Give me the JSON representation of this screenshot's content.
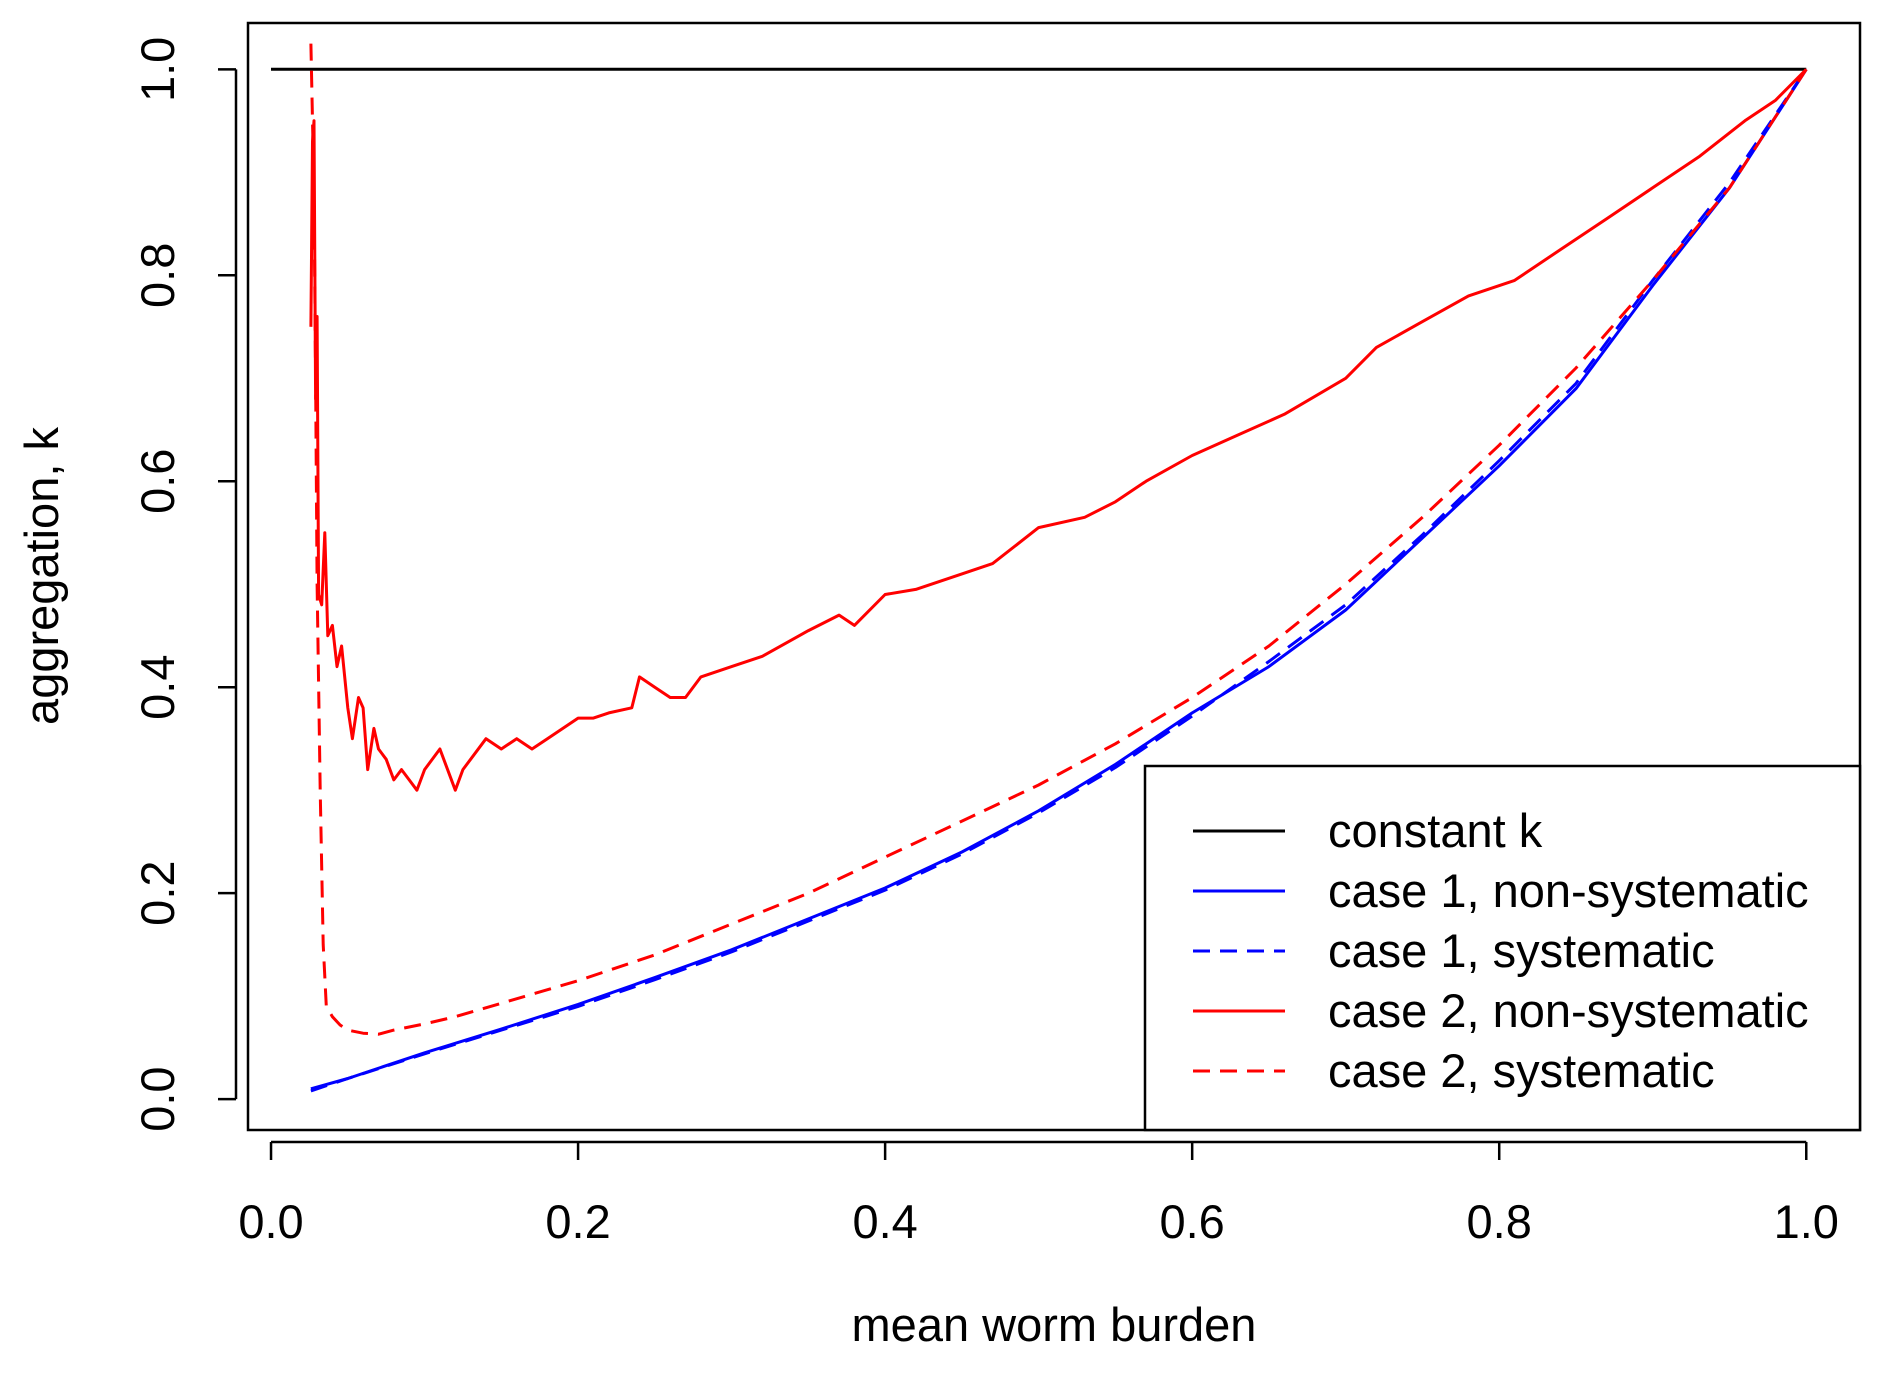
{
  "chart_data": {
    "type": "line",
    "xlabel": "mean worm burden",
    "ylabel": "aggregation, k",
    "xlim": [
      -0.015,
      1.035
    ],
    "ylim": [
      -0.03,
      1.045
    ],
    "xticks": [
      "0.0",
      "0.2",
      "0.4",
      "0.6",
      "0.8",
      "1.0"
    ],
    "yticks": [
      "0.0",
      "0.2",
      "0.4",
      "0.6",
      "0.8",
      "1.0"
    ],
    "grid": false,
    "legend_position": "bottom-right",
    "series": [
      {
        "name": "constant k",
        "color": "#000000",
        "dash": "solid",
        "x": [
          0.0,
          1.0
        ],
        "y": [
          1.0,
          1.0
        ]
      },
      {
        "name": "case 1, non-systematic",
        "color": "#0000ff",
        "dash": "solid",
        "x": [
          0.026,
          0.05,
          0.1,
          0.15,
          0.2,
          0.25,
          0.3,
          0.35,
          0.4,
          0.45,
          0.5,
          0.55,
          0.6,
          0.65,
          0.7,
          0.75,
          0.8,
          0.85,
          0.9,
          0.95,
          1.0
        ],
        "y": [
          0.01,
          0.02,
          0.045,
          0.068,
          0.092,
          0.118,
          0.145,
          0.175,
          0.205,
          0.24,
          0.28,
          0.325,
          0.375,
          0.42,
          0.475,
          0.545,
          0.615,
          0.69,
          0.79,
          0.885,
          1.0
        ]
      },
      {
        "name": "case 1, systematic",
        "color": "#0000ff",
        "dash": "dashed",
        "x": [
          0.026,
          0.05,
          0.1,
          0.15,
          0.2,
          0.25,
          0.3,
          0.35,
          0.4,
          0.45,
          0.5,
          0.55,
          0.6,
          0.65,
          0.7,
          0.75,
          0.8,
          0.85,
          0.9,
          0.95,
          1.0
        ],
        "y": [
          0.008,
          0.02,
          0.044,
          0.067,
          0.09,
          0.116,
          0.143,
          0.173,
          0.203,
          0.238,
          0.278,
          0.322,
          0.372,
          0.425,
          0.48,
          0.548,
          0.62,
          0.695,
          0.795,
          0.89,
          1.0
        ]
      },
      {
        "name": "case 2, non-systematic",
        "color": "#ff0000",
        "dash": "solid",
        "x": [
          0.026,
          0.027,
          0.028,
          0.029,
          0.03,
          0.031,
          0.033,
          0.035,
          0.037,
          0.04,
          0.043,
          0.046,
          0.05,
          0.053,
          0.057,
          0.06,
          0.063,
          0.067,
          0.07,
          0.075,
          0.08,
          0.085,
          0.09,
          0.095,
          0.1,
          0.11,
          0.12,
          0.125,
          0.13,
          0.14,
          0.15,
          0.16,
          0.17,
          0.18,
          0.2,
          0.21,
          0.22,
          0.235,
          0.24,
          0.25,
          0.26,
          0.27,
          0.28,
          0.3,
          0.32,
          0.35,
          0.37,
          0.38,
          0.4,
          0.42,
          0.45,
          0.47,
          0.5,
          0.53,
          0.55,
          0.57,
          0.6,
          0.63,
          0.66,
          0.7,
          0.72,
          0.75,
          0.78,
          0.81,
          0.84,
          0.87,
          0.9,
          0.93,
          0.96,
          0.98,
          1.0
        ],
        "y": [
          0.75,
          0.93,
          0.95,
          0.68,
          0.76,
          0.49,
          0.48,
          0.55,
          0.45,
          0.46,
          0.42,
          0.44,
          0.38,
          0.35,
          0.39,
          0.38,
          0.32,
          0.36,
          0.34,
          0.33,
          0.31,
          0.32,
          0.31,
          0.3,
          0.32,
          0.34,
          0.3,
          0.32,
          0.33,
          0.35,
          0.34,
          0.35,
          0.34,
          0.35,
          0.37,
          0.37,
          0.375,
          0.38,
          0.41,
          0.4,
          0.39,
          0.39,
          0.41,
          0.42,
          0.43,
          0.455,
          0.47,
          0.46,
          0.49,
          0.495,
          0.51,
          0.52,
          0.555,
          0.565,
          0.58,
          0.6,
          0.625,
          0.645,
          0.665,
          0.7,
          0.73,
          0.755,
          0.78,
          0.795,
          0.825,
          0.855,
          0.885,
          0.915,
          0.95,
          0.97,
          1.0
        ]
      },
      {
        "name": "case 2, systematic",
        "color": "#ff0000",
        "dash": "dashed",
        "x": [
          0.026,
          0.027,
          0.028,
          0.029,
          0.03,
          0.032,
          0.034,
          0.036,
          0.038,
          0.04,
          0.045,
          0.05,
          0.06,
          0.07,
          0.08,
          0.1,
          0.12,
          0.15,
          0.2,
          0.25,
          0.3,
          0.35,
          0.4,
          0.45,
          0.5,
          0.55,
          0.6,
          0.65,
          0.7,
          0.75,
          0.8,
          0.85,
          0.9,
          0.95,
          1.0
        ],
        "y": [
          1.025,
          0.95,
          0.88,
          0.7,
          0.5,
          0.3,
          0.15,
          0.09,
          0.085,
          0.08,
          0.072,
          0.067,
          0.064,
          0.063,
          0.067,
          0.073,
          0.08,
          0.093,
          0.115,
          0.14,
          0.17,
          0.2,
          0.235,
          0.27,
          0.305,
          0.345,
          0.39,
          0.44,
          0.5,
          0.565,
          0.635,
          0.71,
          0.795,
          0.885,
          1.0
        ]
      }
    ]
  }
}
